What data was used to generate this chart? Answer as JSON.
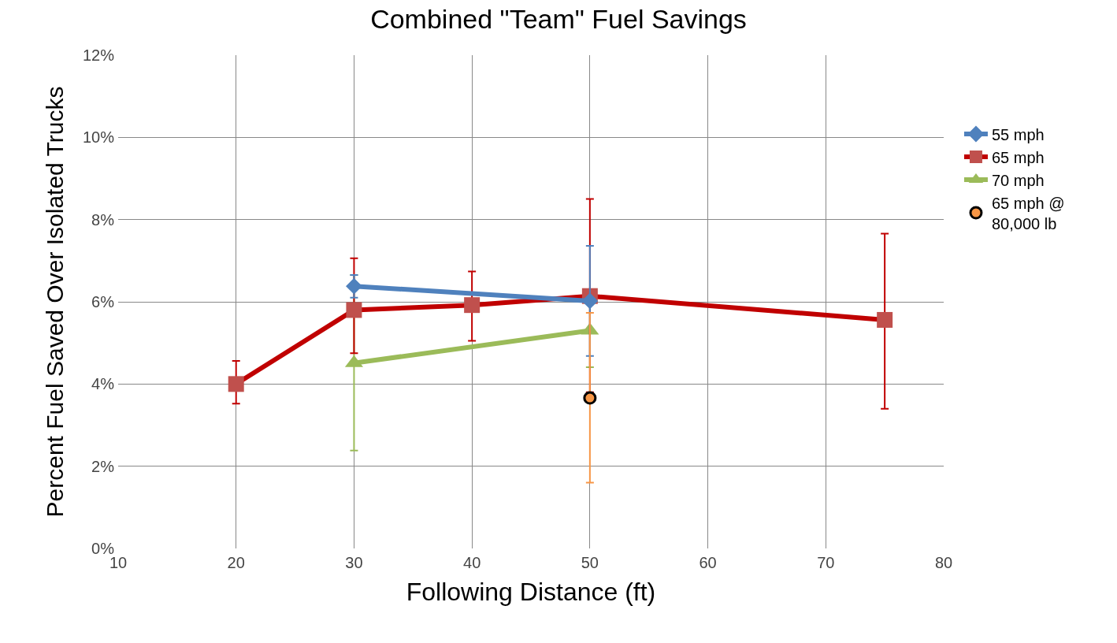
{
  "chart_data": {
    "type": "line",
    "title": "Combined \"Team\" Fuel Savings",
    "xlabel": "Following Distance (ft)",
    "ylabel": "Percent Fuel Saved Over Isolated Trucks",
    "xlim": [
      10,
      80
    ],
    "xticks": [
      10,
      20,
      30,
      40,
      50,
      60,
      70,
      80
    ],
    "ylim": [
      0,
      12
    ],
    "yticks": [
      {
        "value": 0,
        "label": "0%"
      },
      {
        "value": 2,
        "label": "2%"
      },
      {
        "value": 4,
        "label": "4%"
      },
      {
        "value": 6,
        "label": "6%"
      },
      {
        "value": 8,
        "label": "8%"
      },
      {
        "value": 10,
        "label": "10%"
      },
      {
        "value": 12,
        "label": "12%"
      }
    ],
    "grid": true,
    "legend": "right",
    "series": [
      {
        "name": "55 mph",
        "color": "#4f81bd",
        "marker": "diamond",
        "x": [
          30,
          50
        ],
        "values": [
          6.38,
          6.02
        ],
        "errors": [
          [
            6.1,
            6.65
          ],
          [
            4.68,
            7.36
          ]
        ]
      },
      {
        "name": "65 mph",
        "color": "#c00000",
        "marker": "square",
        "x": [
          20,
          30,
          40,
          50,
          75
        ],
        "values": [
          4.0,
          5.8,
          5.92,
          6.14,
          5.56
        ],
        "errors": [
          [
            3.52,
            4.56
          ],
          [
            4.75,
            7.06
          ],
          [
            5.05,
            6.74
          ],
          [
            3.8,
            8.5
          ],
          [
            3.4,
            7.66
          ]
        ]
      },
      {
        "name": "70 mph",
        "color": "#9bbb59",
        "marker": "triangle",
        "x": [
          30,
          50
        ],
        "values": [
          4.51,
          5.3
        ],
        "errors": [
          [
            2.38,
            6.65
          ],
          [
            4.41,
            6.2
          ]
        ]
      },
      {
        "name": "65 mph @ 80,000 lb",
        "type": "scatter",
        "color": "#f79646",
        "marker": "circle",
        "x": [
          50
        ],
        "values": [
          3.66
        ],
        "errors": [
          [
            1.6,
            5.73
          ]
        ]
      }
    ]
  }
}
